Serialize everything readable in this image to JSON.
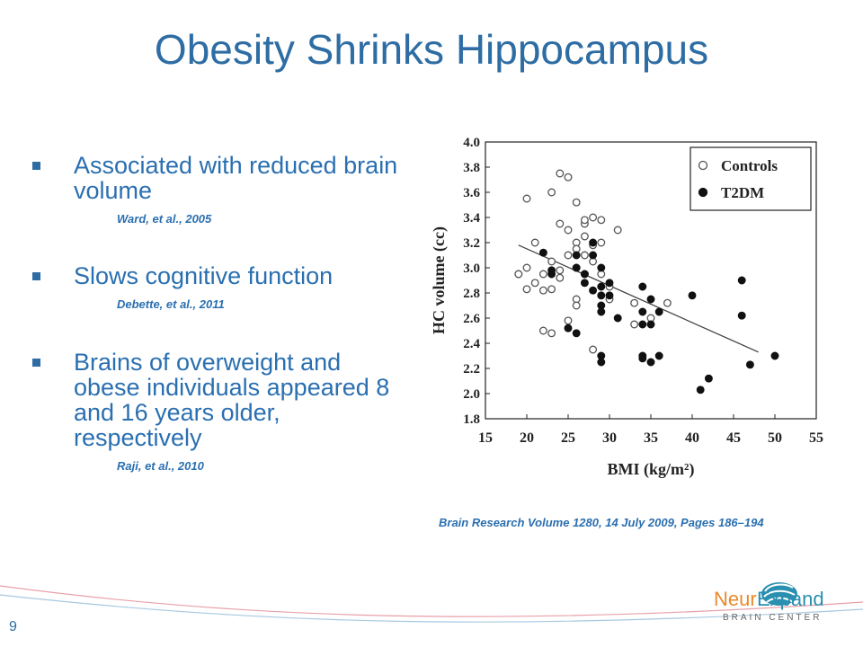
{
  "slide": {
    "title": "Obesity Shrinks Hippocampus",
    "page_number": "9",
    "source": "Brain Research Volume 1280, 14 July 2009, Pages 186–194",
    "bullets": [
      {
        "text": "Associated with reduced brain volume",
        "citation": "Ward, et al., 2005"
      },
      {
        "text": "Slows cognitive function",
        "citation": "Debette, et al., 2011"
      },
      {
        "text": "Brains of overweight and obese individuals appeared 8 and 16 years older, respectively",
        "citation": "Raji, et al., 2010"
      }
    ],
    "logo": {
      "name": "NeurExpand",
      "tagline": "BRAIN CENTER",
      "neur": "Neur",
      "expand": "Expand"
    },
    "colors": {
      "accent": "#2e6da4",
      "logo_orange": "#e88a2e",
      "logo_teal": "#2a8fb0",
      "swoosh": "#e8a0a8"
    }
  },
  "chart_data": {
    "type": "scatter",
    "xlabel": "BMI (kg/m²)",
    "ylabel": "HC volume (cc)",
    "xlim": [
      15,
      55
    ],
    "ylim": [
      1.8,
      4.0
    ],
    "xticks": [
      15,
      20,
      25,
      30,
      35,
      40,
      45,
      50,
      55
    ],
    "yticks": [
      1.8,
      2.0,
      2.2,
      2.4,
      2.6,
      2.8,
      3.0,
      3.2,
      3.4,
      3.6,
      3.8,
      4.0
    ],
    "legend_position": "top-right",
    "series": [
      {
        "name": "Controls",
        "marker": "open-circle",
        "points": [
          [
            19,
            2.95
          ],
          [
            20,
            3.0
          ],
          [
            20,
            2.83
          ],
          [
            21,
            3.2
          ],
          [
            22,
            2.95
          ],
          [
            22,
            2.82
          ],
          [
            22,
            2.5
          ],
          [
            23,
            2.48
          ],
          [
            23,
            2.83
          ],
          [
            23,
            3.05
          ],
          [
            23,
            3.6
          ],
          [
            24,
            3.75
          ],
          [
            24,
            3.35
          ],
          [
            24,
            2.98
          ],
          [
            25,
            3.72
          ],
          [
            25,
            3.3
          ],
          [
            25,
            3.1
          ],
          [
            25,
            2.58
          ],
          [
            26,
            3.52
          ],
          [
            26,
            3.2
          ],
          [
            26,
            3.0
          ],
          [
            26,
            2.75
          ],
          [
            26,
            2.7
          ],
          [
            27,
            3.35
          ],
          [
            27,
            3.25
          ],
          [
            27,
            3.1
          ],
          [
            27,
            2.95
          ],
          [
            28,
            3.4
          ],
          [
            28,
            3.18
          ],
          [
            28,
            3.05
          ],
          [
            28,
            2.35
          ],
          [
            29,
            3.38
          ],
          [
            29,
            3.2
          ],
          [
            29,
            2.95
          ],
          [
            30,
            2.85
          ],
          [
            30,
            2.75
          ],
          [
            31,
            3.3
          ],
          [
            33,
            2.55
          ],
          [
            33,
            2.72
          ],
          [
            35,
            2.6
          ],
          [
            37,
            2.72
          ],
          [
            19,
            2.95
          ],
          [
            21,
            2.88
          ],
          [
            24,
            2.92
          ],
          [
            26,
            3.15
          ],
          [
            27,
            3.38
          ],
          [
            20,
            3.55
          ]
        ]
      },
      {
        "name": "T2DM",
        "marker": "filled-circle",
        "points": [
          [
            22,
            3.12
          ],
          [
            23,
            2.95
          ],
          [
            23,
            2.98
          ],
          [
            25,
            2.52
          ],
          [
            26,
            2.48
          ],
          [
            26,
            3.0
          ],
          [
            26,
            3.1
          ],
          [
            27,
            2.95
          ],
          [
            27,
            2.88
          ],
          [
            28,
            3.2
          ],
          [
            28,
            3.1
          ],
          [
            28,
            2.82
          ],
          [
            29,
            3.0
          ],
          [
            29,
            2.85
          ],
          [
            29,
            2.78
          ],
          [
            29,
            2.7
          ],
          [
            29,
            2.65
          ],
          [
            29,
            2.3
          ],
          [
            29,
            2.25
          ],
          [
            30,
            2.88
          ],
          [
            30,
            2.78
          ],
          [
            31,
            2.6
          ],
          [
            34,
            2.85
          ],
          [
            34,
            2.65
          ],
          [
            34,
            2.55
          ],
          [
            34,
            2.3
          ],
          [
            34,
            2.28
          ],
          [
            35,
            2.75
          ],
          [
            35,
            2.55
          ],
          [
            35,
            2.25
          ],
          [
            36,
            2.3
          ],
          [
            36,
            2.65
          ],
          [
            40,
            2.78
          ],
          [
            41,
            2.03
          ],
          [
            42,
            2.12
          ],
          [
            46,
            2.9
          ],
          [
            46,
            2.62
          ],
          [
            47,
            2.23
          ],
          [
            50,
            2.3
          ]
        ]
      }
    ],
    "trendline": {
      "from": [
        19,
        3.18
      ],
      "to": [
        48,
        2.33
      ]
    }
  }
}
